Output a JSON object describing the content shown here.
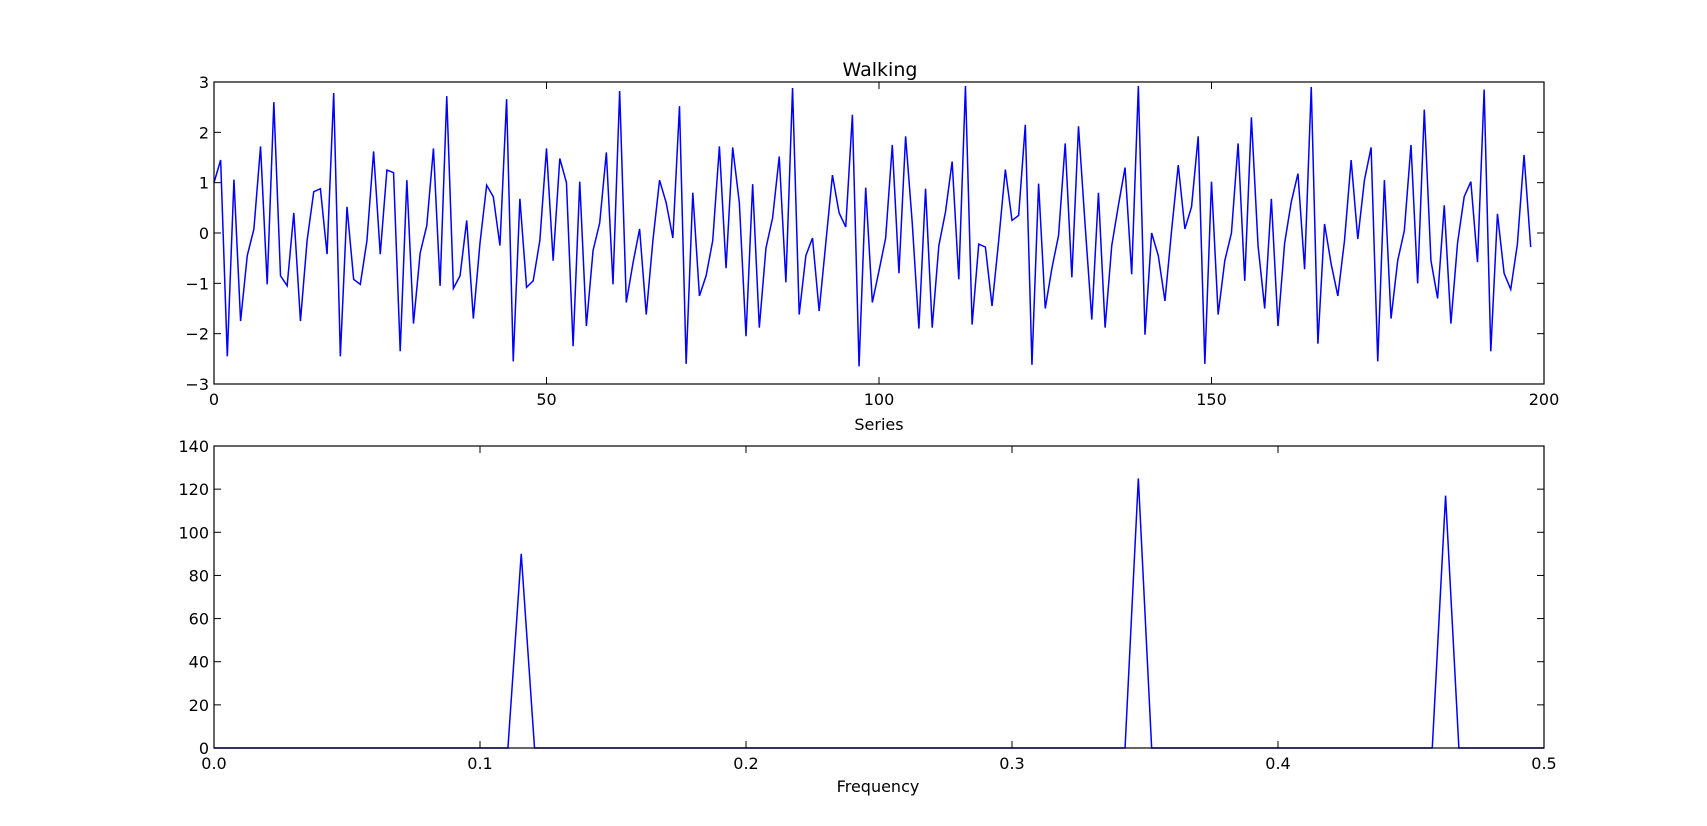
{
  "figure": {
    "background": "#ffffff",
    "line_color": "#0000ff",
    "frame_color": "#000000"
  },
  "chart_data": [
    {
      "type": "line",
      "title": "Walking",
      "xlabel": "Series",
      "ylabel": "",
      "xlim": [
        0,
        200
      ],
      "ylim": [
        -3,
        3
      ],
      "xticks": [
        0,
        50,
        100,
        150,
        200
      ],
      "yticks": [
        -3,
        -2,
        -1,
        0,
        1,
        2,
        3
      ],
      "xtick_labels": [
        "0",
        "50",
        "100",
        "150",
        "200"
      ],
      "ytick_labels": [
        "−3",
        "−2",
        "−1",
        "0",
        "1",
        "2",
        "3"
      ],
      "grid": false,
      "series": [
        {
          "color": "#0000ff",
          "x_start": 0,
          "x_step": 1,
          "y": [
            1.0,
            1.45,
            -2.45,
            1.06,
            -1.75,
            -0.45,
            0.08,
            1.72,
            -1.02,
            2.6,
            -0.85,
            -1.05,
            0.4,
            -1.75,
            -0.15,
            0.82,
            0.88,
            -0.42,
            2.78,
            -2.45,
            0.52,
            -0.92,
            -1.02,
            -0.15,
            1.62,
            -0.42,
            1.25,
            1.2,
            -2.35,
            1.05,
            -1.8,
            -0.4,
            0.15,
            1.68,
            -1.05,
            2.72,
            -1.1,
            -0.85,
            0.25,
            -1.7,
            -0.2,
            0.95,
            0.72,
            -0.25,
            2.66,
            -2.55,
            0.68,
            -1.08,
            -0.95,
            -0.15,
            1.68,
            -0.55,
            1.48,
            1.0,
            -2.25,
            1.02,
            -1.85,
            -0.35,
            0.2,
            1.6,
            -1.02,
            2.82,
            -1.38,
            -0.6,
            0.08,
            -1.62,
            -0.15,
            1.05,
            0.6,
            -0.1,
            2.52,
            -2.6,
            0.8,
            -1.25,
            -0.85,
            -0.15,
            1.72,
            -0.7,
            1.7,
            0.6,
            -2.05,
            0.97,
            -1.88,
            -0.3,
            0.3,
            1.52,
            -0.98,
            2.88,
            -1.62,
            -0.45,
            -0.1,
            -1.55,
            -0.2,
            1.15,
            0.4,
            0.12,
            2.35,
            -2.65,
            0.9,
            -1.38,
            -0.75,
            -0.1,
            1.75,
            -0.8,
            1.92,
            0.2,
            -1.9,
            0.88,
            -1.88,
            -0.25,
            0.42,
            1.42,
            -0.92,
            2.92,
            -1.82,
            -0.22,
            -0.28,
            -1.45,
            -0.15,
            1.26,
            0.25,
            0.35,
            2.15,
            -2.62,
            0.98,
            -1.5,
            -0.7,
            -0.05,
            1.78,
            -0.88,
            2.12,
            0.15,
            -1.72,
            0.8,
            -1.88,
            -0.25,
            0.55,
            1.3,
            -0.82,
            2.92,
            -2.02,
            0.0,
            -0.45,
            -1.35,
            0.05,
            1.35,
            0.08,
            0.52,
            1.92,
            -2.6,
            1.02,
            -1.62,
            -0.55,
            0.0,
            1.78,
            -0.95,
            2.3,
            -0.25,
            -1.5,
            0.68,
            -1.85,
            -0.2,
            0.62,
            1.18,
            -0.72,
            2.9,
            -2.2,
            0.18,
            -0.62,
            -1.25,
            -0.15,
            1.45,
            -0.12,
            1.05,
            1.7,
            -2.55,
            1.05,
            -1.7,
            -0.55,
            0.05,
            1.75,
            -1.0,
            2.45,
            -0.55,
            -1.3,
            0.55,
            -1.8,
            -0.2,
            0.72,
            1.02,
            -0.58,
            2.85,
            -2.35,
            0.38,
            -0.8,
            -1.12,
            -0.22,
            1.55,
            -0.28
          ]
        }
      ]
    },
    {
      "type": "line",
      "title": "",
      "xlabel": "Frequency",
      "ylabel": "",
      "xlim": [
        0.0,
        0.5
      ],
      "ylim": [
        0,
        140
      ],
      "xticks": [
        0.0,
        0.1,
        0.2,
        0.3,
        0.4,
        0.5
      ],
      "yticks": [
        0,
        20,
        40,
        60,
        80,
        100,
        120,
        140
      ],
      "xtick_labels": [
        "0.0",
        "0.1",
        "0.2",
        "0.3",
        "0.4",
        "0.5"
      ],
      "ytick_labels": [
        "0",
        "20",
        "40",
        "60",
        "80",
        "100",
        "120",
        "140"
      ],
      "grid": false,
      "series": [
        {
          "color": "#0000ff",
          "x": [
            0.0,
            0.1105,
            0.1155,
            0.1205,
            0.3425,
            0.3475,
            0.3525,
            0.458,
            0.463,
            0.468,
            0.5
          ],
          "y": [
            0,
            0,
            90,
            0,
            0,
            125,
            0,
            0,
            117,
            0,
            0
          ]
        }
      ]
    }
  ]
}
